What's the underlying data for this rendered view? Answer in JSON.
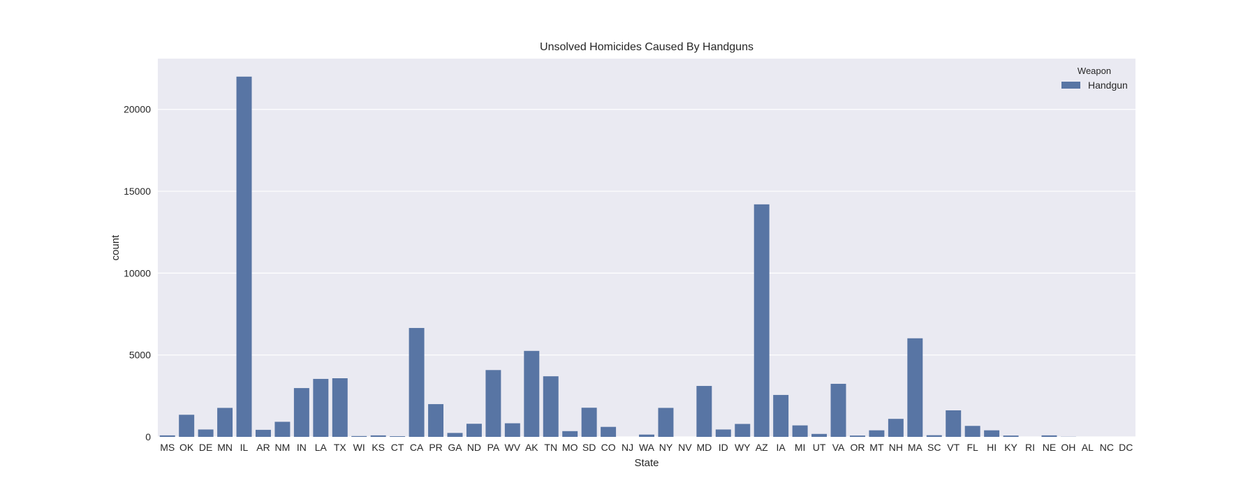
{
  "chart_data": {
    "type": "bar",
    "title": "Unsolved Homicides Caused By Handguns",
    "xlabel": "State",
    "ylabel": "count",
    "ylim": [
      0,
      23100
    ],
    "yticks": [
      0,
      5000,
      10000,
      15000,
      20000
    ],
    "ytick_labels": [
      "0",
      "5000",
      "10000",
      "15000",
      "20000"
    ],
    "grid": true,
    "legend": {
      "title": "Weapon",
      "position": "top-right",
      "entries": [
        "Handgun"
      ]
    },
    "colors": {
      "bar": "#5875a4",
      "plot_background": "#eaeaf2",
      "grid": "#ffffff"
    },
    "categories": [
      "MS",
      "OK",
      "DE",
      "MN",
      "IL",
      "AR",
      "NM",
      "IN",
      "LA",
      "TX",
      "WI",
      "KS",
      "CT",
      "CA",
      "PR",
      "GA",
      "ND",
      "PA",
      "WV",
      "AK",
      "TN",
      "MO",
      "SD",
      "CO",
      "NJ",
      "WA",
      "NY",
      "NV",
      "MD",
      "ID",
      "WY",
      "AZ",
      "IA",
      "MI",
      "UT",
      "VA",
      "OR",
      "MT",
      "NH",
      "MA",
      "SC",
      "VT",
      "FL",
      "HI",
      "KY",
      "RI",
      "NE",
      "OH",
      "AL",
      "NC",
      "DC"
    ],
    "series": [
      {
        "name": "Handgun",
        "values": [
          90,
          1350,
          450,
          1770,
          22000,
          430,
          920,
          2980,
          3540,
          3580,
          50,
          90,
          40,
          6650,
          2000,
          240,
          800,
          4080,
          830,
          5250,
          3700,
          350,
          1780,
          610,
          0,
          140,
          1770,
          0,
          3110,
          450,
          790,
          14200,
          2560,
          700,
          180,
          3240,
          80,
          400,
          1100,
          6020,
          100,
          1620,
          670,
          400,
          80,
          0,
          90,
          10,
          0,
          0,
          0
        ]
      }
    ]
  }
}
